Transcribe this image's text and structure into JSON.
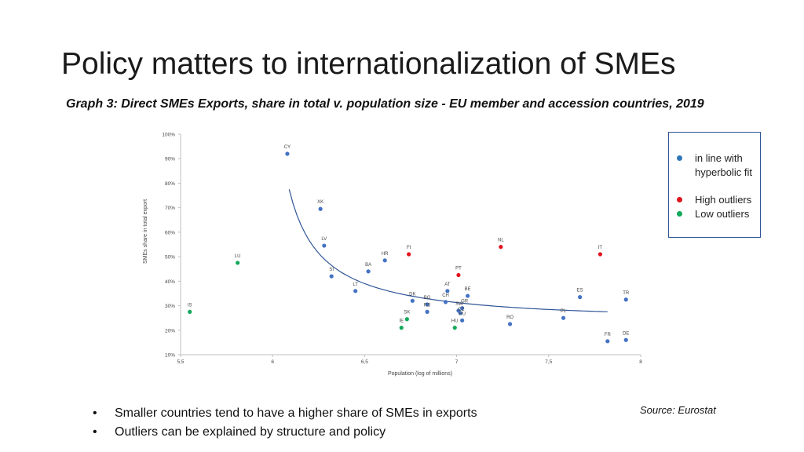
{
  "slide": {
    "title": "Policy matters to internationalization of SMEs",
    "subtitle": "Graph 3: Direct SMEs Exports, share in total v. population size - EU member and accession countries, 2019",
    "bullets": [
      "Smaller countries tend to have a higher share of SMEs in exports",
      "Outliers can be explained by structure and policy"
    ],
    "bullet_mark": "•",
    "source": "Source: Eurostat"
  },
  "colors": {
    "fit": "#4472c4",
    "high": "#e0141e",
    "low": "#13a85a",
    "curve": "#2f5597",
    "axis": "#bfbfbf",
    "text": "#444444"
  },
  "legend": {
    "items": [
      {
        "label": "in line with hyperbolic fit",
        "group": "fit"
      },
      {
        "label": "High outliers",
        "group": "high"
      },
      {
        "label": "Low outliers",
        "group": "low"
      }
    ]
  },
  "chart_data": {
    "type": "scatter",
    "xlabel": "Population  (log of millions)",
    "ylabel": "SMEs share in total export",
    "xlim": [
      5.5,
      8
    ],
    "ylim": [
      10,
      100
    ],
    "x_ticks": [
      5.5,
      6,
      6.5,
      7,
      7.5,
      8
    ],
    "x_tick_labels": [
      "5,5",
      "6",
      "6,5",
      "7",
      "7,5",
      "8"
    ],
    "y_ticks": [
      10,
      20,
      30,
      40,
      50,
      60,
      70,
      80,
      90,
      100
    ],
    "y_tick_labels": [
      "10%",
      "20%",
      "30%",
      "40%",
      "50%",
      "60%",
      "70%",
      "80%",
      "90%",
      "100%"
    ],
    "grid": false,
    "trendline": {
      "type": "hyperbolic fit",
      "x_range": [
        6.09,
        7.82
      ]
    },
    "points": [
      {
        "label": "CY",
        "x": 6.08,
        "y": 92,
        "group": "fit"
      },
      {
        "label": "XK",
        "x": 6.26,
        "y": 69.5,
        "group": "fit"
      },
      {
        "label": "LV",
        "x": 6.28,
        "y": 54.5,
        "group": "fit"
      },
      {
        "label": "SI",
        "x": 6.32,
        "y": 42,
        "group": "fit"
      },
      {
        "label": "HR",
        "x": 6.61,
        "y": 48.5,
        "group": "fit"
      },
      {
        "label": "BA",
        "x": 6.52,
        "y": 44,
        "group": "fit"
      },
      {
        "label": "LT",
        "x": 6.45,
        "y": 36,
        "group": "fit"
      },
      {
        "label": "DK",
        "x": 6.76,
        "y": 32,
        "group": "fit"
      },
      {
        "label": "SK",
        "x": 6.73,
        "y": 24.5,
        "group": "low"
      },
      {
        "label": "IE",
        "x": 6.7,
        "y": 21,
        "group": "low"
      },
      {
        "label": "BG",
        "x": 6.84,
        "y": 30.5,
        "group": "fit"
      },
      {
        "label": "RS",
        "x": 6.84,
        "y": 27.5,
        "group": "fit"
      },
      {
        "label": "AT",
        "x": 6.95,
        "y": 36,
        "group": "fit"
      },
      {
        "label": "CH",
        "x": 6.94,
        "y": 31.5,
        "group": "fit"
      },
      {
        "label": "BE",
        "x": 7.06,
        "y": 34,
        "group": "fit"
      },
      {
        "label": "SW",
        "x": 7.01,
        "y": 28,
        "group": "fit"
      },
      {
        "label": "GR",
        "x": 7.03,
        "y": 29,
        "group": "fit"
      },
      {
        "label": "CZ",
        "x": 7.02,
        "y": 27,
        "group": "fit"
      },
      {
        "label": "PT",
        "x": 7.01,
        "y": 42.5,
        "group": "high"
      },
      {
        "label": "HU",
        "x": 7.03,
        "y": 24,
        "group": "fit"
      },
      {
        "label": "HU",
        "x": 6.99,
        "y": 21,
        "group": "low"
      },
      {
        "label": "FI",
        "x": 6.74,
        "y": 51,
        "group": "high"
      },
      {
        "label": "NL",
        "x": 7.24,
        "y": 54,
        "group": "high"
      },
      {
        "label": "RO",
        "x": 7.29,
        "y": 22.5,
        "group": "fit"
      },
      {
        "label": "PL",
        "x": 7.58,
        "y": 25,
        "group": "fit"
      },
      {
        "label": "ES",
        "x": 7.67,
        "y": 33.5,
        "group": "fit"
      },
      {
        "label": "IT",
        "x": 7.78,
        "y": 51,
        "group": "high"
      },
      {
        "label": "TR",
        "x": 7.92,
        "y": 32.5,
        "group": "fit"
      },
      {
        "label": "FR",
        "x": 7.82,
        "y": 15.5,
        "group": "fit"
      },
      {
        "label": "DE",
        "x": 7.92,
        "y": 16,
        "group": "fit"
      },
      {
        "label": "LU",
        "x": 5.81,
        "y": 47.5,
        "group": "low"
      },
      {
        "label": "IS",
        "x": 5.55,
        "y": 27.5,
        "group": "low"
      }
    ]
  }
}
